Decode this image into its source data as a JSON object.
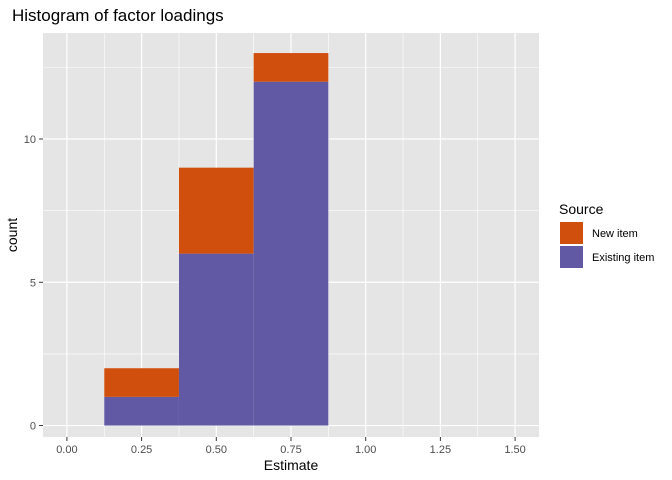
{
  "chart_data": {
    "type": "bar",
    "title": "Histogram of factor loadings",
    "xlabel": "Estimate",
    "ylabel": "count",
    "xlim": [
      -0.08,
      1.58
    ],
    "ylim": [
      -0.4,
      13.7
    ],
    "bin_width": 0.25,
    "x_ticks": [
      0.0,
      0.25,
      0.5,
      0.75,
      1.0,
      1.25,
      1.5
    ],
    "x_tick_labels": [
      "0.00",
      "0.25",
      "0.50",
      "0.75",
      "1.00",
      "1.25",
      "1.50"
    ],
    "y_ticks": [
      0,
      5,
      10
    ],
    "y_tick_labels": [
      "0",
      "5",
      "10"
    ],
    "bin_centers": [
      0.25,
      0.5,
      0.75
    ],
    "series": [
      {
        "name": "Existing item",
        "color": "#6159a4",
        "values": [
          1,
          6,
          12
        ]
      },
      {
        "name": "New item",
        "color": "#d14f0c",
        "values": [
          1,
          3,
          1
        ]
      }
    ],
    "legend": {
      "title": "Source",
      "placement": "right",
      "entries": [
        {
          "label": "New item",
          "color": "#d14f0c"
        },
        {
          "label": "Existing item",
          "color": "#6159a4"
        }
      ]
    },
    "grid": true,
    "panel_color": "#e5e5e5"
  }
}
